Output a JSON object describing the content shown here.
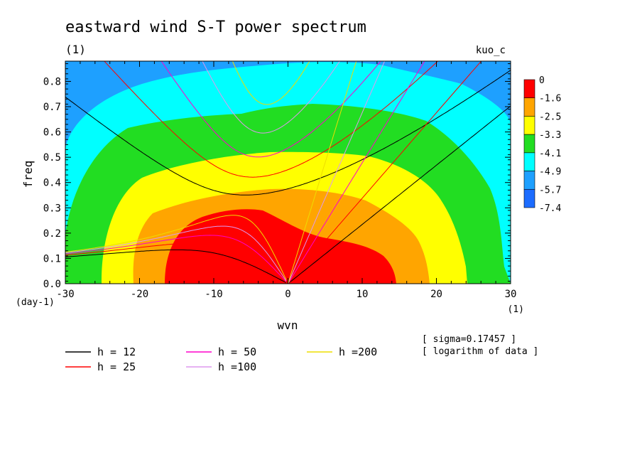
{
  "chart_data": {
    "type": "heatmap",
    "title": "eastward wind S-T power spectrum",
    "subtitle": "(1)",
    "run_label": "kuo_c",
    "xlabel": "wvn",
    "ylabel": "freq",
    "x_unit": "(1)",
    "y_unit": "(day-1)",
    "xlim": [
      -30,
      30
    ],
    "ylim": [
      0,
      0.88
    ],
    "x_ticks": [
      "-30",
      "-20",
      "-10",
      "0",
      "10",
      "20",
      "30"
    ],
    "x_tick_values": [
      -30,
      -20,
      -10,
      0,
      10,
      20,
      30
    ],
    "y_ticks": [
      "0.0",
      "0.1",
      "0.2",
      "0.3",
      "0.4",
      "0.5",
      "0.6",
      "0.7",
      "0.8"
    ],
    "y_tick_values": [
      0,
      0.1,
      0.2,
      0.3,
      0.4,
      0.5,
      0.6,
      0.7,
      0.8
    ],
    "colorbar": {
      "labels": [
        "0",
        "-1.6",
        "-2.5",
        "-3.3",
        "-4.1",
        "-4.9",
        "-5.7",
        "-7.4"
      ],
      "colors": [
        "#ff0000",
        "#ffa500",
        "#ffff00",
        "#22dd22",
        "#00ffff",
        "#1ea0ff",
        "#1c6cff"
      ]
    },
    "notes": [
      "[ sigma=0.17457 ]",
      "[ logarithm of data ]"
    ],
    "equivalent_depth_lines": [
      {
        "label": "h = 12",
        "h": 12,
        "color": "#000000"
      },
      {
        "label": "h = 25",
        "h": 25,
        "color": "#ff0000"
      },
      {
        "label": "h = 50",
        "h": 50,
        "color": "#ff00cc"
      },
      {
        "label": "h =100",
        "h": 100,
        "color": "#dd99ee"
      },
      {
        "label": "h =200",
        "h": 200,
        "color": "#eedd00"
      }
    ]
  }
}
